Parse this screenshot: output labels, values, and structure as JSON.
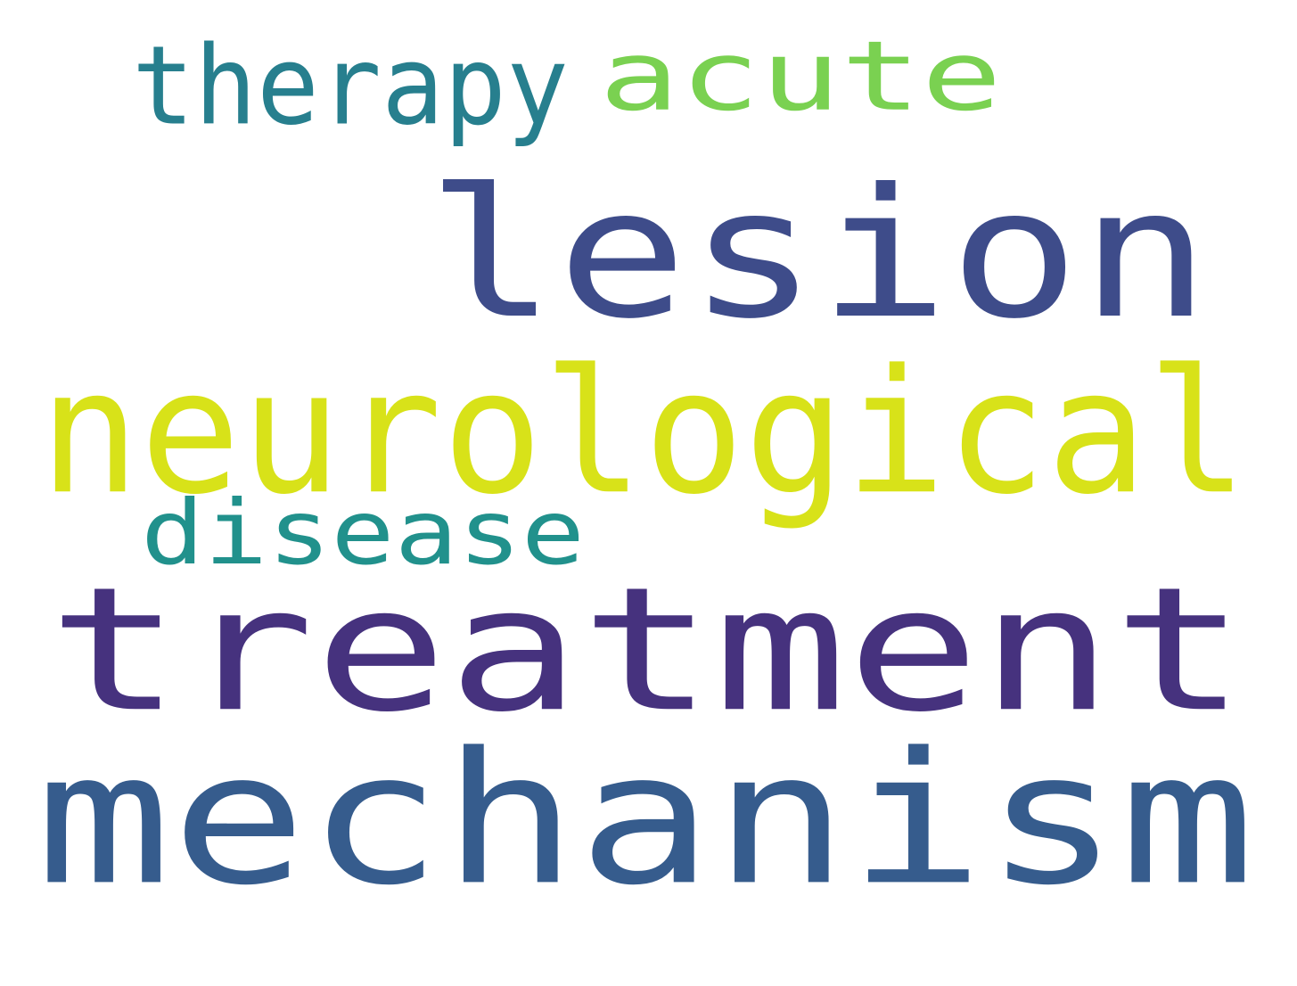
{
  "words": {
    "lesion": {
      "text": "lesion",
      "color": "#3e4c8a"
    },
    "mechanism": {
      "text": "mechanism",
      "color": "#365c8d"
    },
    "treatment": {
      "text": "treatment",
      "color": "#46327e"
    },
    "neurological": {
      "text": "neurological",
      "color": "#d8e219"
    },
    "acute": {
      "text": "acute",
      "color": "#7ad151"
    },
    "therapy": {
      "text": "therapy",
      "color": "#277f8e"
    },
    "disease": {
      "text": "disease",
      "color": "#21918c"
    }
  }
}
